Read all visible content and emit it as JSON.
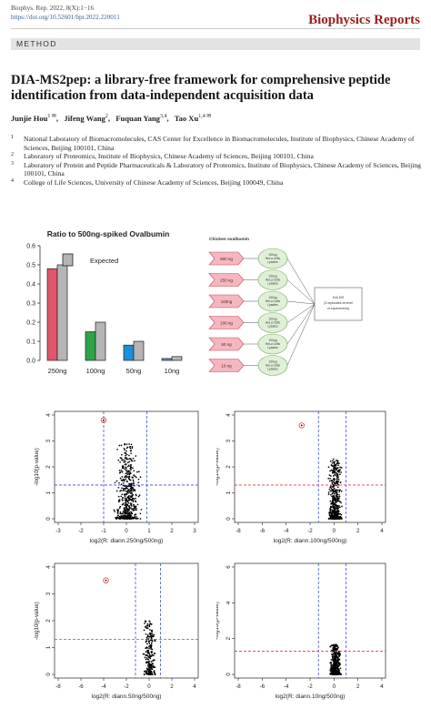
{
  "header": {
    "citation": "Biophys. Rep. 2022, 8(X):1−16",
    "doi": "https://doi.org/10.52601/bpr.2022.220011",
    "journal": "Biophysics Reports",
    "section": "METHOD"
  },
  "title": "DIA-MS2pep: a library-free framework for comprehensive peptide identification from data-independent acquisition data",
  "authors": [
    {
      "name": "Junjie Hou",
      "sup": "1 ✉"
    },
    {
      "name": "Jifeng Wang",
      "sup": "2"
    },
    {
      "name": "Fuquan Yang",
      "sup": "3,4"
    },
    {
      "name": "Tao Xu",
      "sup": "1,4 ✉"
    }
  ],
  "affiliations": [
    {
      "n": "1",
      "text": "National Laboratory of Biomacromolecules, CAS Center for Excellence in Biomacromolecules, Institute of Biophysics, Chinese Academy of Sciences, Beijing 100101, China"
    },
    {
      "n": "2",
      "text": "Laboratory of Proteomics, Institute of Biophysics, Chinese Academy of Sciences, Beijing 100101, China"
    },
    {
      "n": "3",
      "text": "Laboratory of Protein and Peptide Pharmaceuticals & Laboratory of Proteomics, Institute of Biophysics, Chinese Academy of Sciences, Beijing 100101, China"
    },
    {
      "n": "4",
      "text": "College of Life Sciences, University of Chinese Academy of Sciences, Beijing 100049, China"
    }
  ],
  "chart_data": [
    {
      "type": "bar",
      "title": "Ratio to 500ng-spiked Ovalbumin",
      "categories": [
        "250ng",
        "100ng",
        "50ng",
        "10ng"
      ],
      "series": [
        {
          "name": "",
          "values": [
            0.48,
            0.15,
            0.08,
            0.01
          ],
          "colors": [
            "#e0566b",
            "#2ea34a",
            "#1f8fd6",
            "#6c8fd6"
          ]
        },
        {
          "name": "Expected",
          "values": [
            0.5,
            0.2,
            0.1,
            0.02
          ],
          "color": "#b5b5b5"
        }
      ],
      "ylim": [
        0,
        0.6
      ],
      "yticks": [
        "0.0",
        "0.1",
        "0.2",
        "0.3",
        "0.4",
        "0.5",
        "0.6"
      ],
      "legend": "top-center"
    },
    {
      "type": "scatter",
      "xlabel": "log2(R: diann.250ng/500ng)",
      "ylabel": "-log10(p-value)",
      "xlim": [
        -3,
        3
      ],
      "ylim": [
        0,
        4
      ],
      "xticks": [
        "-3",
        "-2",
        "-1",
        "0",
        "1",
        "2",
        "3"
      ],
      "yticks": [
        "0",
        "1",
        "2",
        "3",
        "4"
      ],
      "vlines": [
        -1.0,
        0.9
      ],
      "hline": 1.3,
      "outlier": [
        -1.0,
        3.8
      ],
      "cloud": {
        "x_center": 0.05,
        "x_spread": 0.45,
        "y_max": 2.9
      }
    },
    {
      "type": "scatter",
      "xlabel": "log2(R: diann.100ng/500ng)",
      "ylabel": "-log10(p-value)",
      "xlim": [
        -8,
        4
      ],
      "ylim": [
        0,
        4
      ],
      "xticks": [
        "-8",
        "-6",
        "-4",
        "-2",
        "0",
        "2",
        "4"
      ],
      "yticks": [
        "0",
        "1",
        "2",
        "3",
        "4"
      ],
      "vlines": [
        -1.3,
        1.0
      ],
      "hline": 1.3,
      "outlier": [
        -2.7,
        3.6
      ],
      "cloud": {
        "x_center": 0.1,
        "x_spread": 0.45,
        "y_max": 2.3
      }
    },
    {
      "type": "scatter",
      "xlabel": "log2(R: diann.50ng/500ng)",
      "ylabel": "-log10(p-value)",
      "xlim": [
        -8,
        4
      ],
      "ylim": [
        0,
        4
      ],
      "xticks": [
        "-8",
        "-6",
        "-4",
        "-2",
        "0",
        "2",
        "4"
      ],
      "yticks": [
        "0",
        "1",
        "2",
        "3",
        "4"
      ],
      "vlines": [
        -1.2,
        1.0
      ],
      "hline": 1.3,
      "outlier": [
        -3.8,
        3.5
      ],
      "cloud": {
        "x_center": 0.0,
        "x_spread": 0.4,
        "y_max": 2.0
      }
    },
    {
      "type": "scatter",
      "xlabel": "log2(R: diann.10ng/500ng)",
      "ylabel": "-log10(p-value)",
      "xlim": [
        -8,
        4
      ],
      "ylim": [
        0,
        6
      ],
      "xticks": [
        "-8",
        "-6",
        "-4",
        "-2",
        "0",
        "2",
        "4"
      ],
      "yticks": [
        "0",
        "2",
        "4",
        "6"
      ],
      "vlines": [
        -1.3,
        1.0
      ],
      "hline": 1.3,
      "outlier": [
        -7.0,
        7.3
      ],
      "cloud": {
        "x_center": 0.1,
        "x_spread": 0.35,
        "y_max": 1.7
      }
    }
  ],
  "diagram": {
    "source_label": "Chicken ovalbumin",
    "samples": [
      "500 ng",
      "250 ng",
      "100ng",
      "100 ng",
      "50 ng",
      "10 ng"
    ],
    "lysate_label": [
      "100ug",
      "HeLa Cells",
      "Lysates"
    ],
    "output_label": [
      "DIA MS",
      "(3 replicates at level",
      "of experiments)"
    ],
    "sample_color": "#f4b6bf"
  }
}
